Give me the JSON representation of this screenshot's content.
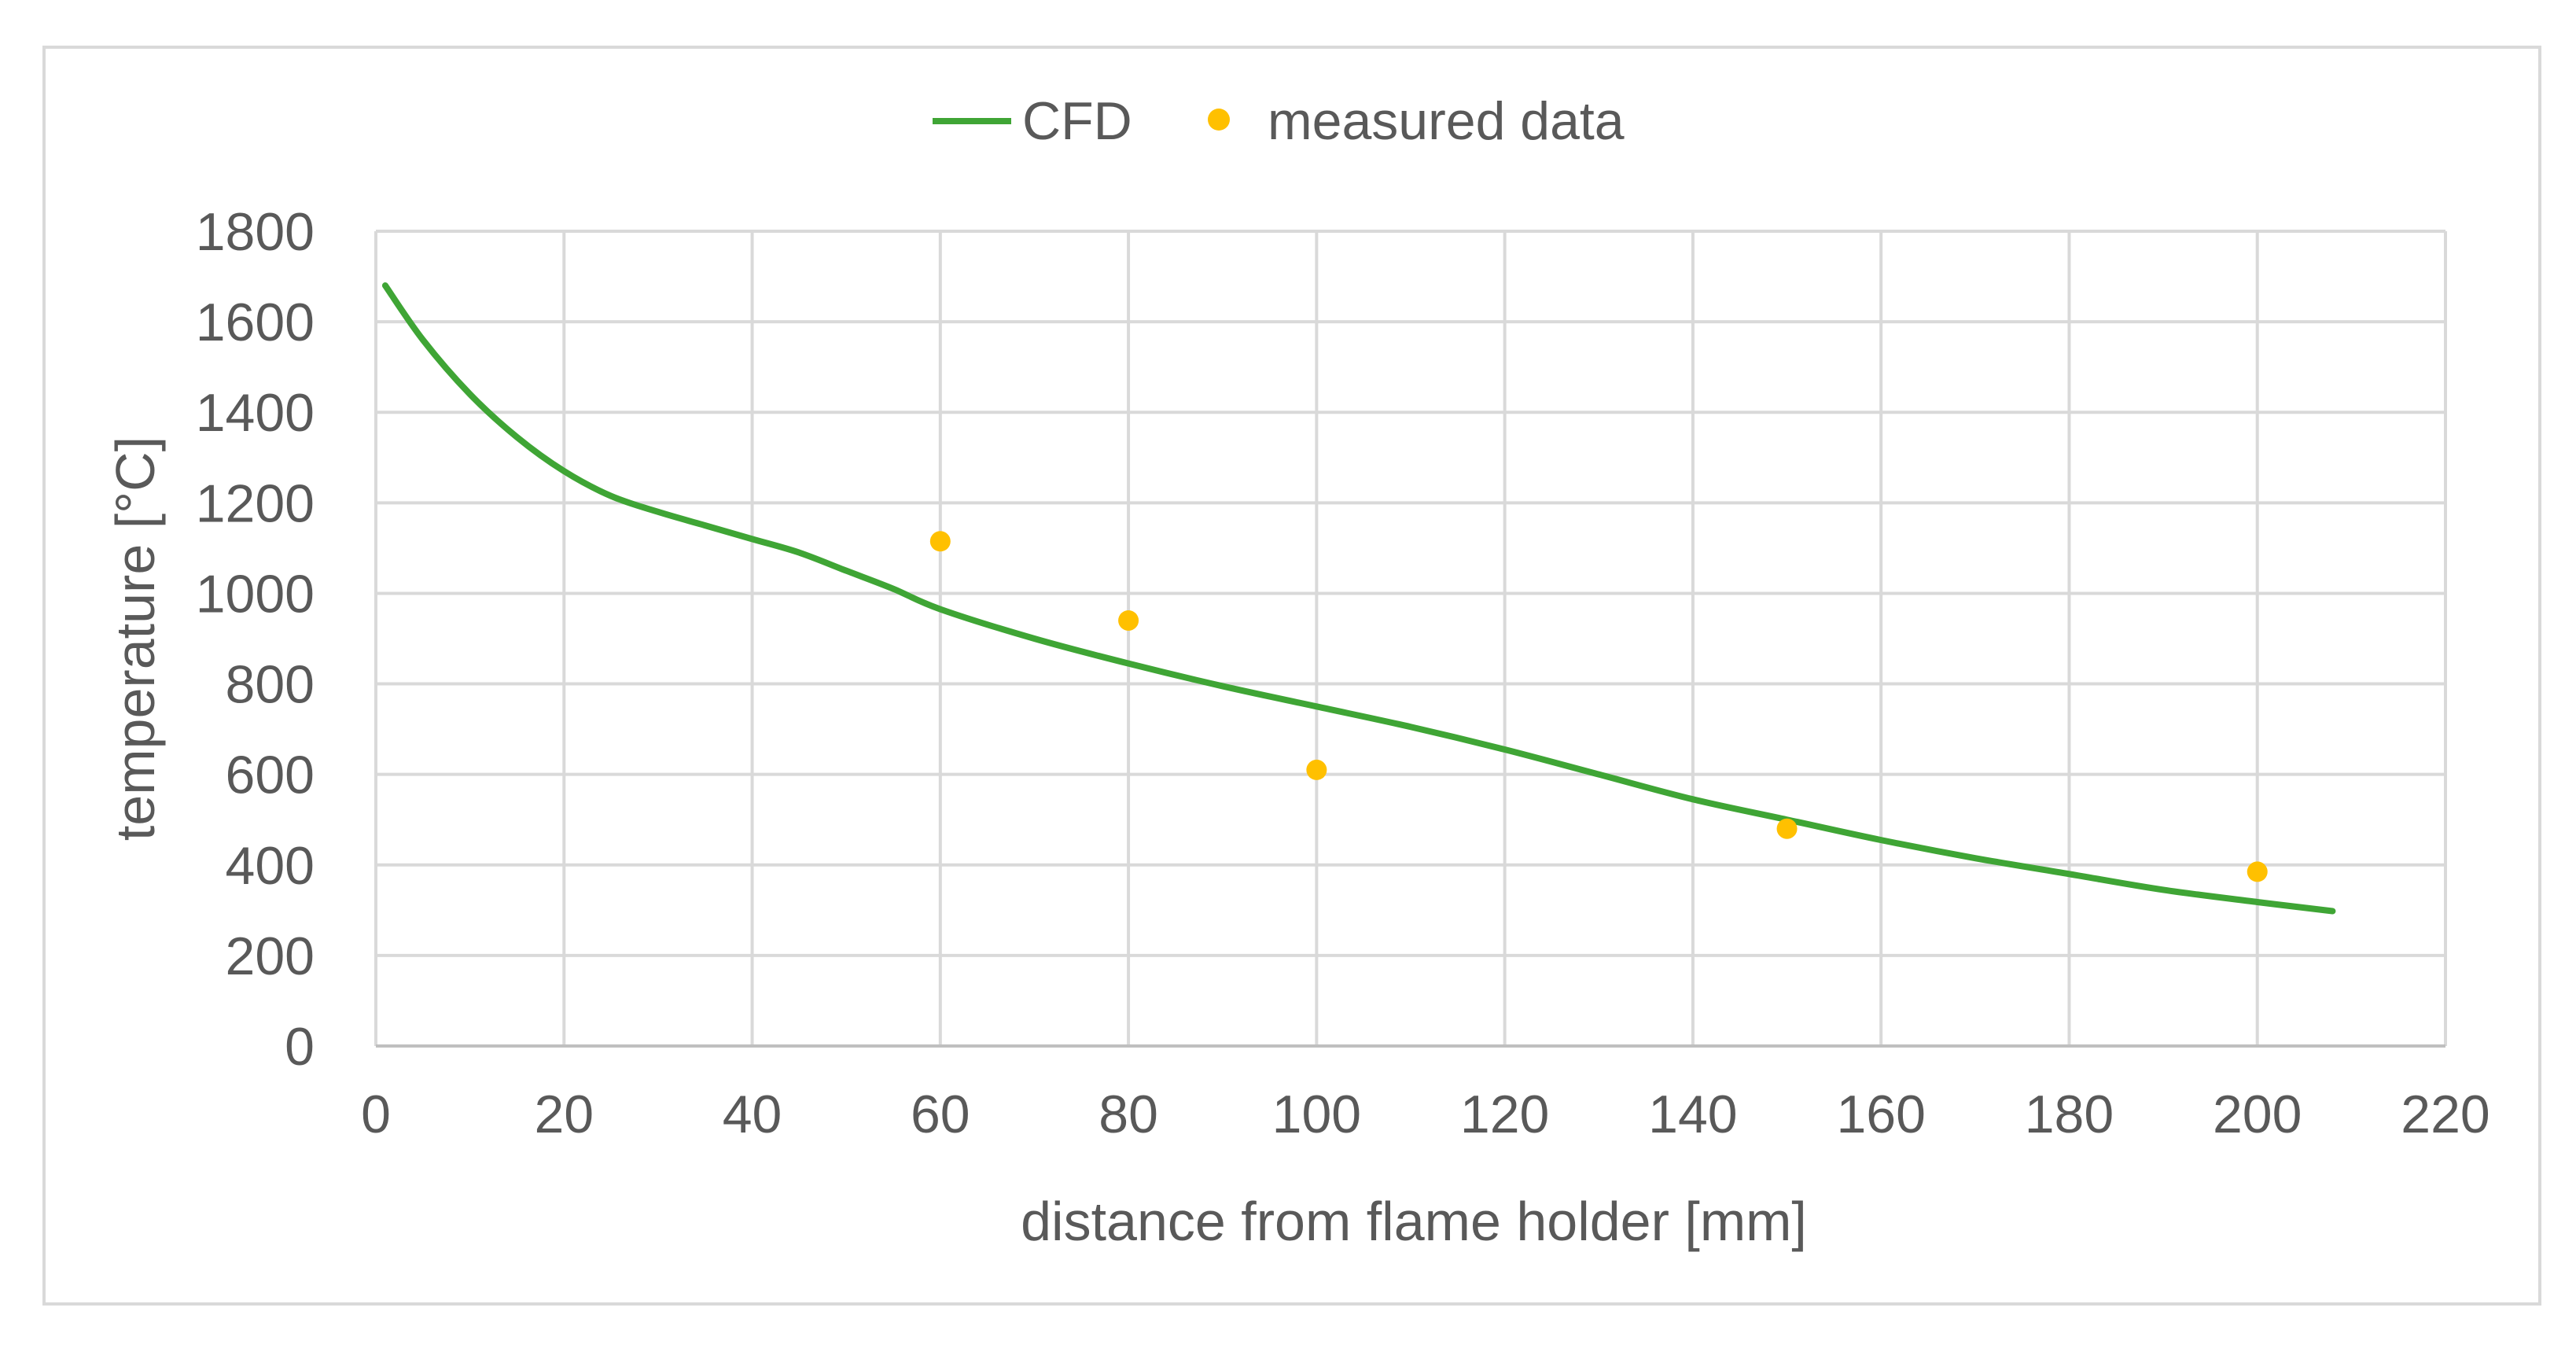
{
  "colors": {
    "series_cfd": "#3fa535",
    "series_measured": "#ffc000",
    "text": "#595959",
    "grid": "#d9d9d9",
    "frame": "#d9d9d9"
  },
  "chart_data": {
    "type": "line",
    "title": "",
    "xlabel": "distance from flame holder [mm]",
    "ylabel": "temperature [°C]",
    "xlim": [
      0,
      220
    ],
    "ylim": [
      0,
      1800
    ],
    "xticks": [
      "0",
      "20",
      "40",
      "60",
      "80",
      "100",
      "120",
      "140",
      "160",
      "180",
      "200",
      "220"
    ],
    "yticks": [
      "0",
      "200",
      "400",
      "600",
      "800",
      "1000",
      "1200",
      "1400",
      "1600",
      "1800"
    ],
    "grid": true,
    "legend_position": "top",
    "series": [
      {
        "name": "CFD",
        "type": "line",
        "color": "#3fa535",
        "x": [
          1,
          5,
          10,
          15,
          20,
          25,
          30,
          35,
          40,
          45,
          50,
          55,
          60,
          70,
          80,
          90,
          100,
          110,
          120,
          130,
          140,
          150,
          160,
          170,
          180,
          190,
          200,
          208
        ],
        "y": [
          1680,
          1560,
          1440,
          1345,
          1270,
          1215,
          1180,
          1150,
          1120,
          1090,
          1050,
          1010,
          965,
          900,
          845,
          795,
          750,
          705,
          655,
          600,
          545,
          500,
          455,
          415,
          380,
          345,
          318,
          298
        ]
      },
      {
        "name": "measured data",
        "type": "scatter",
        "color": "#ffc000",
        "x": [
          60,
          80,
          100,
          150,
          200
        ],
        "y": [
          1115,
          940,
          610,
          480,
          385
        ]
      }
    ]
  }
}
